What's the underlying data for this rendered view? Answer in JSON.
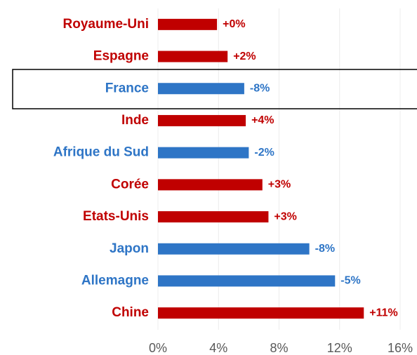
{
  "chart_data": {
    "type": "hbar",
    "categories": [
      "Royaume-Uni",
      "Espagne",
      "France",
      "Inde",
      "Afrique du Sud",
      "Corée",
      "Etats-Unis",
      "Japon",
      "Allemagne",
      "Chine"
    ],
    "values": [
      3.9,
      4.6,
      5.7,
      5.8,
      6.0,
      6.9,
      7.3,
      10.0,
      11.7,
      13.6
    ],
    "annotations": [
      "+0%",
      "+2%",
      "-8%",
      "+4%",
      "-2%",
      "+3%",
      "+3%",
      "-8%",
      "-5%",
      "+11%"
    ],
    "colors": [
      "#c00000",
      "#c00000",
      "#2e75c6",
      "#c00000",
      "#2e75c6",
      "#c00000",
      "#c00000",
      "#2e75c6",
      "#2e75c6",
      "#c00000"
    ],
    "xlim": [
      0,
      16
    ],
    "xticks": [
      {
        "value": 0,
        "label": "0%"
      },
      {
        "value": 4,
        "label": "4%"
      },
      {
        "value": 8,
        "label": "8%"
      },
      {
        "value": 12,
        "label": "12%"
      },
      {
        "value": 16,
        "label": "16%"
      }
    ],
    "grid": true
  }
}
